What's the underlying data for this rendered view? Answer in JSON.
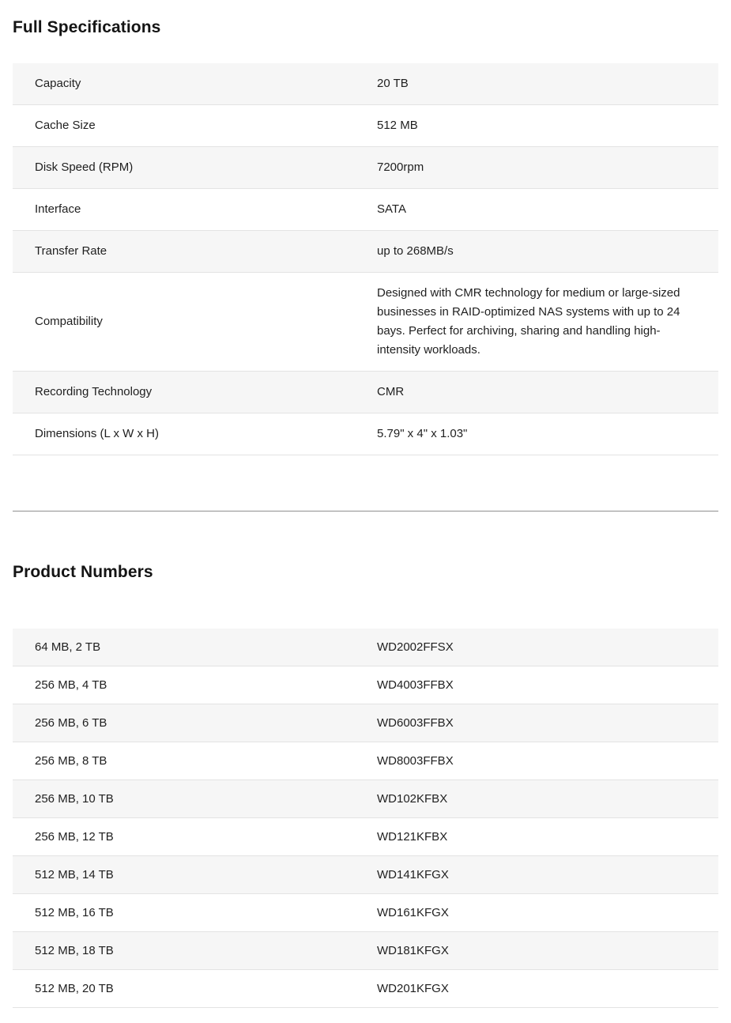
{
  "full_specifications": {
    "title": "Full Specifications",
    "rows": [
      {
        "label": "Capacity",
        "value": "20 TB"
      },
      {
        "label": "Cache Size",
        "value": "512 MB"
      },
      {
        "label": "Disk Speed (RPM)",
        "value": "7200rpm"
      },
      {
        "label": "Interface",
        "value": "SATA"
      },
      {
        "label": "Transfer Rate",
        "value": "up to 268MB/s"
      },
      {
        "label": "Compatibility",
        "value": "Designed with CMR technology for medium or large-sized businesses in RAID-optimized NAS systems with up to 24 bays. Perfect for archiving, sharing and handling high-intensity workloads."
      },
      {
        "label": "Recording Technology",
        "value": "CMR"
      },
      {
        "label": "Dimensions (L x W x H)",
        "value": "5.79\" x 4\" x 1.03\""
      }
    ]
  },
  "product_numbers": {
    "title": "Product Numbers",
    "rows": [
      {
        "label": "64 MB, 2 TB",
        "value": "WD2002FFSX"
      },
      {
        "label": "256 MB, 4 TB",
        "value": "WD4003FFBX"
      },
      {
        "label": "256 MB, 6 TB",
        "value": "WD6003FFBX"
      },
      {
        "label": "256 MB, 8 TB",
        "value": "WD8003FFBX"
      },
      {
        "label": "256 MB, 10 TB",
        "value": "WD102KFBX"
      },
      {
        "label": "256 MB, 12 TB",
        "value": "WD121KFBX"
      },
      {
        "label": "512 MB, 14 TB",
        "value": "WD141KFGX"
      },
      {
        "label": "512 MB, 16 TB",
        "value": "WD161KFGX"
      },
      {
        "label": "512 MB, 18 TB",
        "value": "WD181KFGX"
      },
      {
        "label": "512 MB, 20 TB",
        "value": "WD201KFGX"
      }
    ]
  },
  "colors": {
    "row_stripe": "#f6f6f6",
    "row_border": "#e3e3e3",
    "section_divider": "#8f8f8f",
    "heading_text": "#141414",
    "body_text": "#1f1f1f"
  }
}
